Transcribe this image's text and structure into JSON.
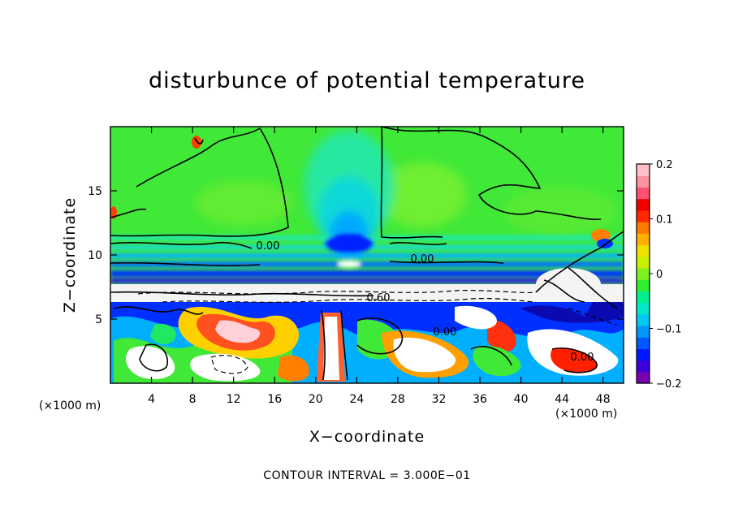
{
  "chart_data": {
    "type": "heatmap",
    "title": "disturbunce of potential temperature",
    "xlabel": "X−coordinate",
    "ylabel": "Z−coordinate",
    "x_unit_left": "(×1000 m)",
    "x_unit_right": "(×1000 m)",
    "xlim": [
      0,
      50
    ],
    "ylim": [
      0,
      20
    ],
    "x_ticks": [
      4,
      8,
      12,
      16,
      20,
      24,
      28,
      32,
      36,
      40,
      44,
      48
    ],
    "y_ticks": [
      5,
      10,
      15
    ],
    "colorbar": {
      "range": [
        -0.2,
        0.2
      ],
      "ticks": [
        "0.2",
        "0.1",
        "0",
        "−0.1",
        "−0.2"
      ],
      "colors": [
        "#7a00b0",
        "#3c00d8",
        "#0018ff",
        "#0058ff",
        "#0098ff",
        "#00c8f0",
        "#00e8c8",
        "#00f090",
        "#30ee30",
        "#80f020",
        "#c8f000",
        "#f0e000",
        "#ffb000",
        "#ff7800",
        "#ff2800",
        "#f00000",
        "#ff5070",
        "#ff90a0",
        "#ffc0c8"
      ]
    },
    "contour_interval_text": "CONTOUR INTERVAL = 3.000E−01",
    "contour_labels": [
      "0.00",
      "0.00",
      "0.60",
      "0.00",
      "0.00"
    ],
    "background_color": "#40e838"
  }
}
